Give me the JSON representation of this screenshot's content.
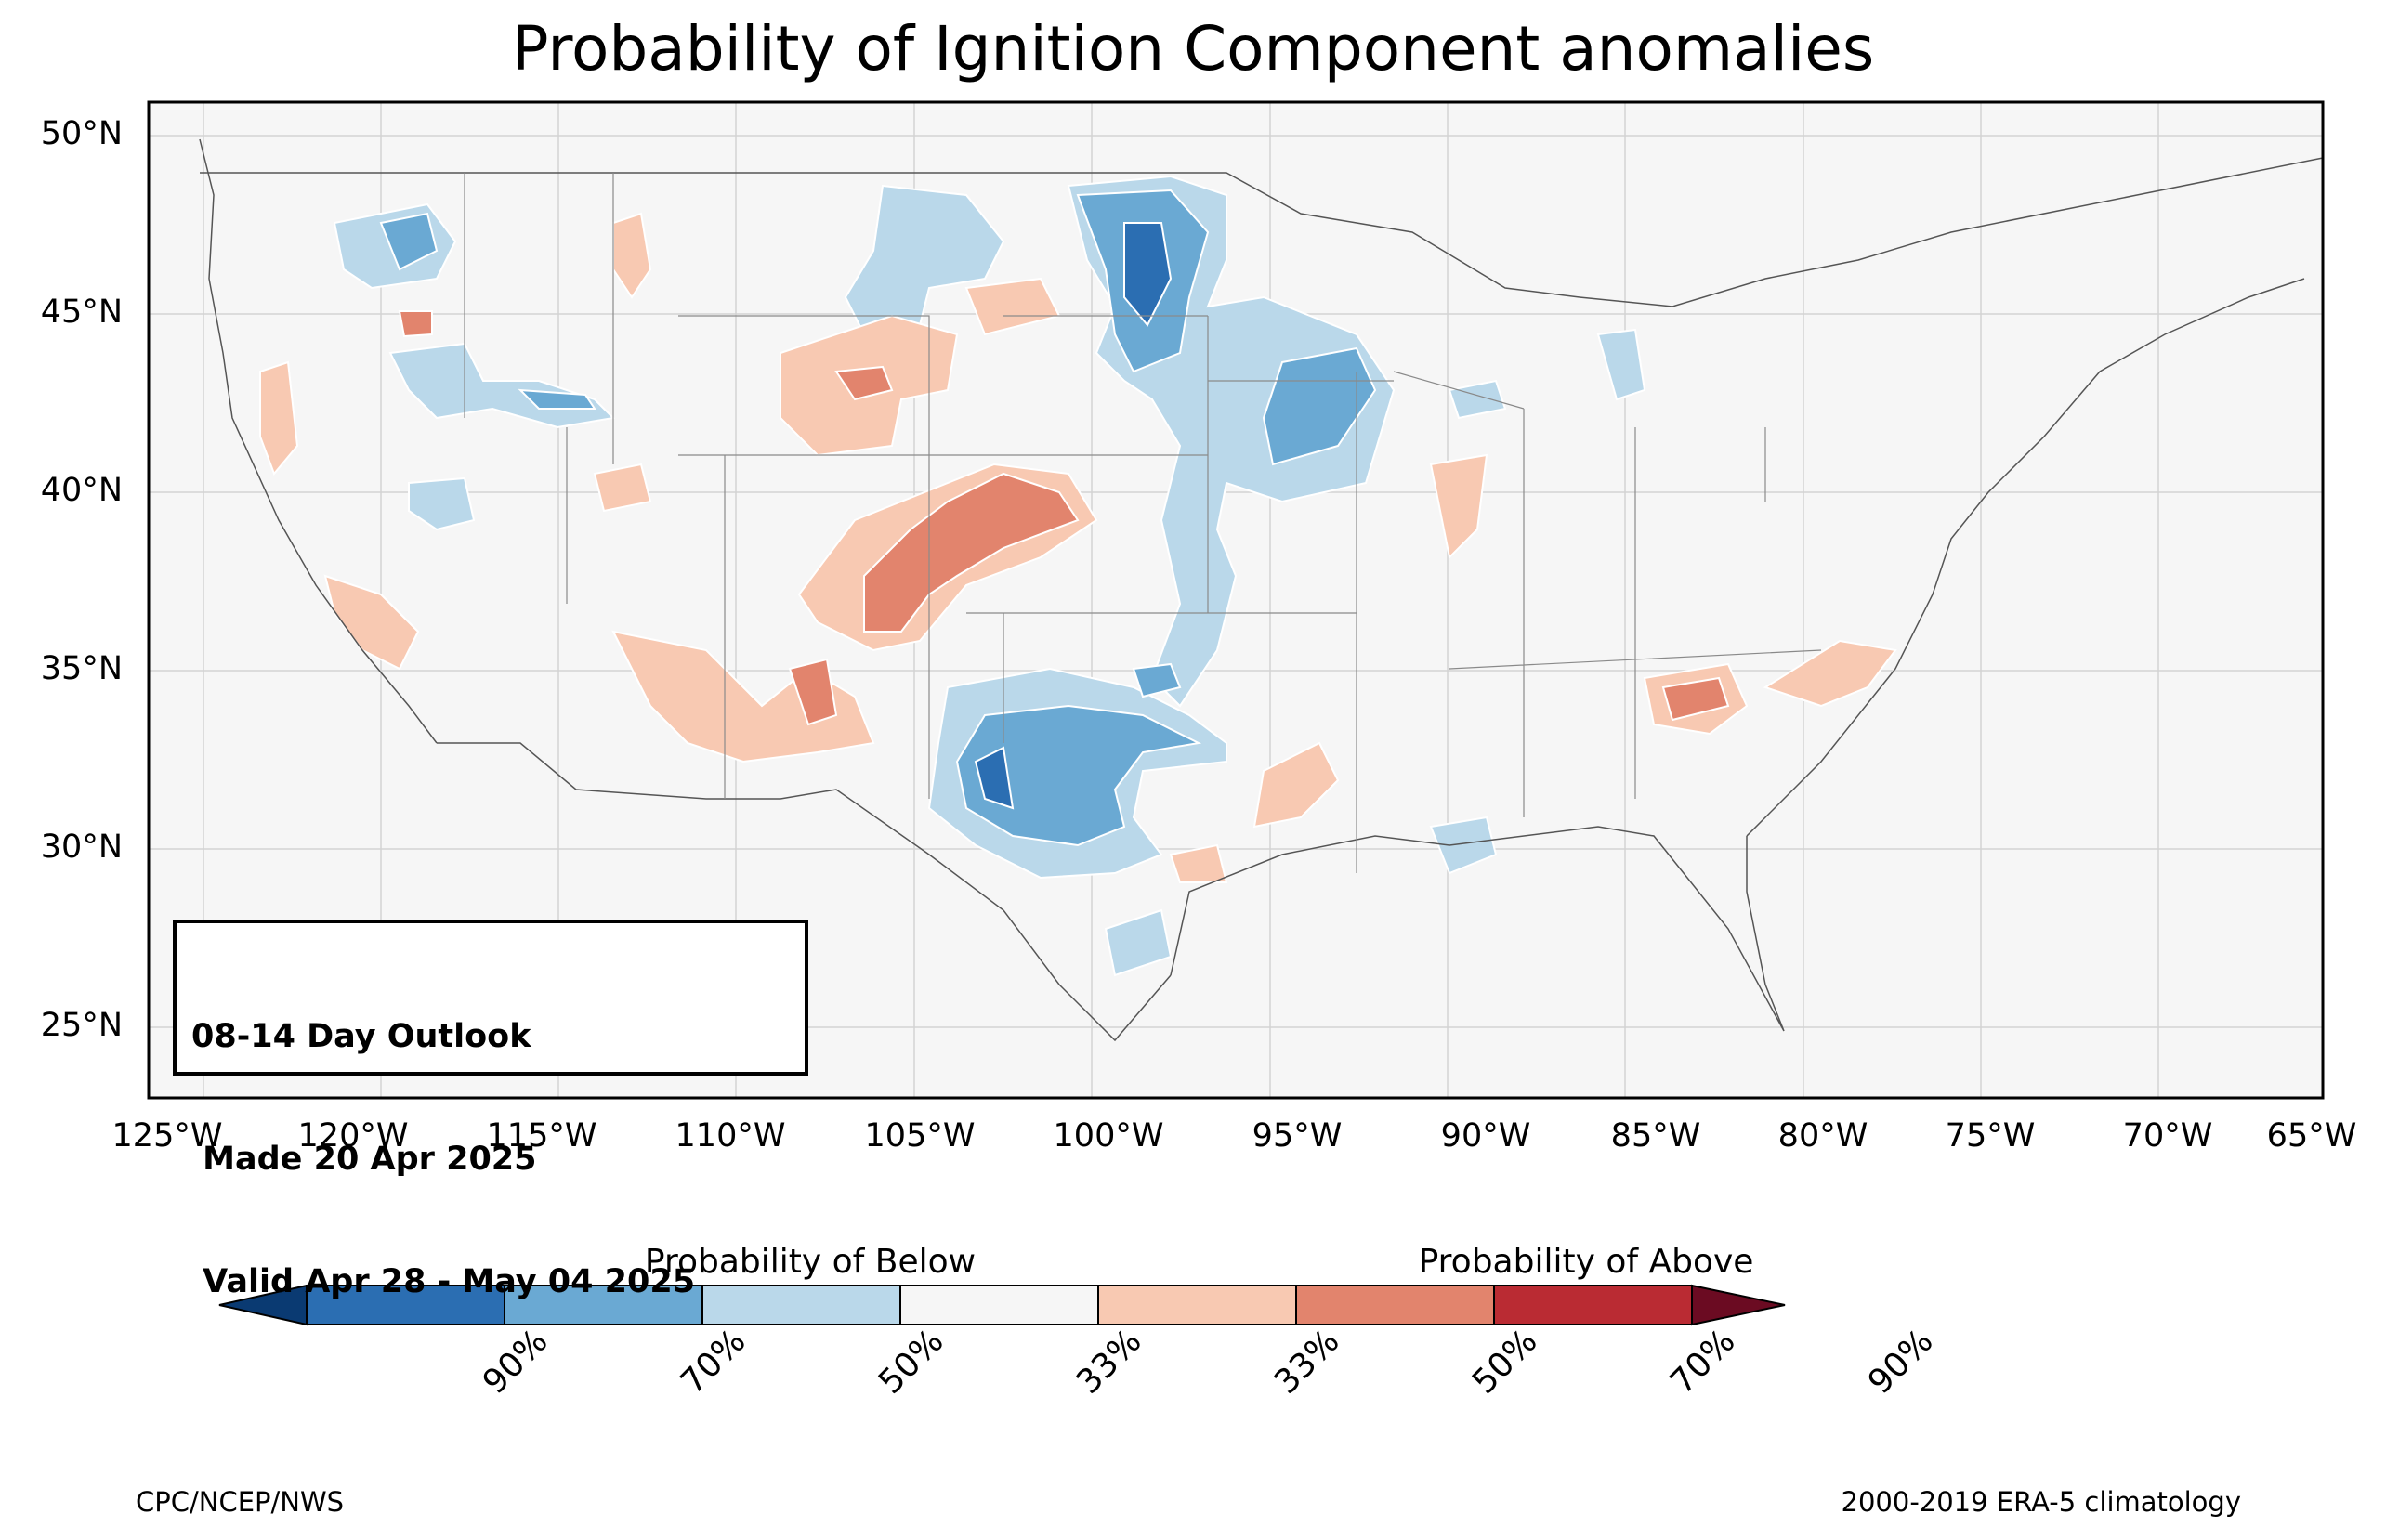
{
  "title": "Probability of Ignition Component anomalies",
  "latitude_labels": [
    "50°N",
    "45°N",
    "40°N",
    "35°N",
    "30°N",
    "25°N"
  ],
  "longitude_labels": [
    "125°W",
    "120°W",
    "115°W",
    "110°W",
    "105°W",
    "100°W",
    "95°W",
    "90°W",
    "85°W",
    "80°W",
    "75°W",
    "70°W",
    "65°W"
  ],
  "outlook": {
    "line1": "08-14 Day Outlook",
    "line2": " Made 20 Apr 2025",
    "line3": " Valid Apr 28 - May 04 2025"
  },
  "colorbar": {
    "below_label": "Probability of Below",
    "above_label": "Probability of Above",
    "ticks": [
      "90%",
      "70%",
      "50%",
      "33%",
      "33%",
      "50%",
      "70%",
      "90%"
    ],
    "colors": [
      "#0a3a72",
      "#2b6eb2",
      "#6aa9d3",
      "#bad8ea",
      "#f6f6f6",
      "#f8c9b2",
      "#e2846d",
      "#ba2b33",
      "#6b0b22"
    ]
  },
  "credits": {
    "left": "CPC/NCEP/NWS",
    "right": "2000-2019 ERA-5 climatology"
  },
  "colors": {
    "land": "#f6f6f6",
    "grid": "#d0d0d0",
    "border": "#777777"
  }
}
